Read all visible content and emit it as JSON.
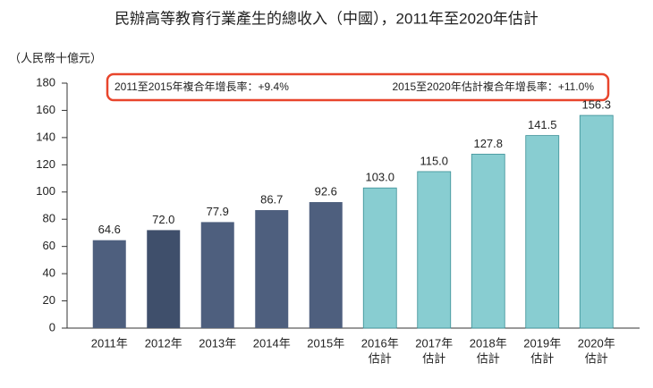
{
  "chart_data": {
    "type": "bar",
    "title": "民辦高等教育行業產生的總收入（中國），2011年至2020年估計",
    "y_label": "（人民幣十億元）",
    "annotations": [
      "2011至2015年複合年增長率：+9.4%",
      "2015至2020年估計複合年增長率：+11.0%"
    ],
    "categories": [
      [
        "2011年"
      ],
      [
        "2012年"
      ],
      [
        "2013年"
      ],
      [
        "2014年"
      ],
      [
        "2015年"
      ],
      [
        "2016年",
        "估計"
      ],
      [
        "2017年",
        "估計"
      ],
      [
        "2018年",
        "估計"
      ],
      [
        "2019年",
        "估計"
      ],
      [
        "2020年",
        "估計"
      ]
    ],
    "values": [
      64.6,
      72.0,
      77.9,
      86.7,
      92.6,
      103.0,
      115.0,
      127.8,
      141.5,
      156.3
    ],
    "value_labels": [
      "64.6",
      "72.0",
      "77.9",
      "86.7",
      "92.6",
      "103.0",
      "115.0",
      "127.8",
      "141.5",
      "156.3"
    ],
    "colors": [
      "#4e5f7e",
      "#3f4f6b",
      "#4e5f7e",
      "#4e5f7e",
      "#4e5f7e",
      "#88cdd1",
      "#88cdd1",
      "#88cdd1",
      "#88cdd1",
      "#88cdd1"
    ],
    "ylim": [
      0,
      180
    ],
    "yticks": [
      0,
      20,
      40,
      60,
      80,
      100,
      120,
      140,
      160,
      180
    ]
  }
}
